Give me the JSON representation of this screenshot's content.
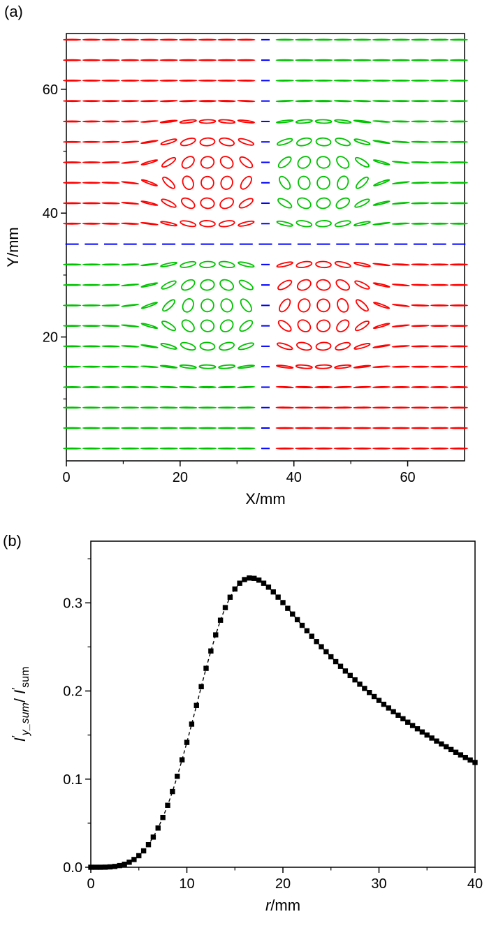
{
  "figure": {
    "panel_a_label": "(a)",
    "panel_b_label": "(b)"
  },
  "chart_data": [
    {
      "id": "a",
      "type": "ellipse-field",
      "xlabel": "X/mm",
      "ylabel": "Y/mm",
      "xlim": [
        0,
        70
      ],
      "ylim": [
        0,
        69
      ],
      "x_ticks_major": [
        0,
        20,
        40,
        60
      ],
      "x_ticks_minor": [
        10,
        30,
        50
      ],
      "y_ticks_major": [
        20,
        40,
        60
      ],
      "y_ticks_minor": [
        10,
        30,
        50
      ],
      "grid": {
        "x_center": 35,
        "y_center": 35,
        "x_spacing": 3.4,
        "y_spacing": 3.3,
        "cols": 21,
        "rows": 21
      },
      "vortex_centers": [
        [
          25.5,
          45.5
        ],
        [
          44.5,
          45.5
        ],
        [
          25.5,
          24.5
        ],
        [
          44.5,
          24.5
        ]
      ],
      "ellipse": {
        "major_mm": 1.5,
        "shrink_mm": 0.4,
        "ecc_sigma_mm": 7.5,
        "twist_sigma_mm": 9
      },
      "colors": {
        "top_left": "#ff0000",
        "top_right": "#00c300",
        "bottom_left": "#00c300",
        "bottom_right": "#ff0000",
        "separatrix": "#0000ff",
        "axes": "#000000"
      }
    },
    {
      "id": "b",
      "type": "scatter",
      "marker": "square",
      "marker_color": "#000000",
      "line_style": "dashed",
      "xlabel_parts": [
        {
          "text": "r",
          "italic": true
        },
        {
          "text": "/mm"
        }
      ],
      "ylabel_parts": [
        {
          "text": "I",
          "italic": true
        },
        {
          "text": "′",
          "sup": true
        },
        {
          "text": "y_sum",
          "sub": true,
          "italic": true
        },
        {
          "text": "/ "
        },
        {
          "text": "I",
          "italic": true
        },
        {
          "text": "′",
          "sup": true
        },
        {
          "text": "sum",
          "sub": true
        }
      ],
      "xlim": [
        0,
        40
      ],
      "ylim": [
        0,
        0.37
      ],
      "x_ticks_major": [
        0,
        10,
        20,
        30,
        40
      ],
      "x_ticks_minor": [
        5,
        15,
        25,
        35
      ],
      "y_ticks_major": [
        0,
        0.1,
        0.2,
        0.3
      ],
      "y_tick_labels": [
        "0.0",
        "0.1",
        "0.2",
        "0.3"
      ],
      "y_ticks_minor": [
        0.05,
        0.15,
        0.25,
        0.35
      ],
      "x_step": 0.5,
      "values": [
        0,
        0,
        0,
        0.0001,
        0.0004,
        0.0009,
        0.0019,
        0.0034,
        0.0057,
        0.0088,
        0.0131,
        0.0186,
        0.0256,
        0.0342,
        0.0445,
        0.0565,
        0.0703,
        0.0859,
        0.1032,
        0.1219,
        0.1417,
        0.1624,
        0.1836,
        0.2049,
        0.2257,
        0.2454,
        0.2637,
        0.2803,
        0.2946,
        0.3064,
        0.3157,
        0.3223,
        0.3264,
        0.3282,
        0.3278,
        0.3258,
        0.3223,
        0.3178,
        0.3124,
        0.3065,
        0.3003,
        0.2938,
        0.2873,
        0.2809,
        0.2745,
        0.2683,
        0.2621,
        0.2561,
        0.2502,
        0.2445,
        0.2388,
        0.2333,
        0.228,
        0.2227,
        0.2176,
        0.2126,
        0.2077,
        0.2029,
        0.1983,
        0.1937,
        0.1893,
        0.1849,
        0.1807,
        0.1765,
        0.1725,
        0.1685,
        0.1646,
        0.1608,
        0.1571,
        0.1535,
        0.15,
        0.1466,
        0.1432,
        0.1399,
        0.1367,
        0.1336,
        0.1305,
        0.1275,
        0.1246,
        0.1217,
        0.1189
      ]
    }
  ]
}
